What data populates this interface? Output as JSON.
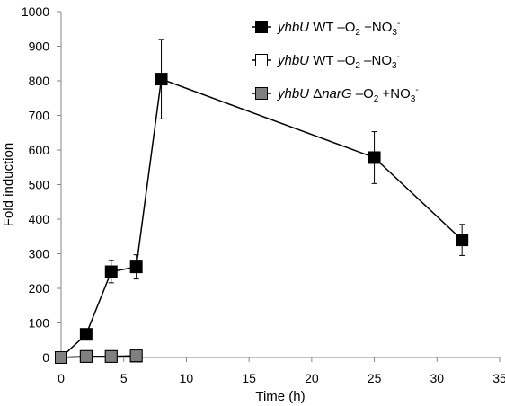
{
  "chart_data": {
    "type": "line",
    "xlabel": "Time (h)",
    "ylabel": "Fold induction",
    "xlim": [
      0,
      35
    ],
    "ylim": [
      0,
      1000
    ],
    "xticks": [
      0,
      5,
      10,
      15,
      20,
      25,
      30,
      35
    ],
    "yticks": [
      0,
      100,
      200,
      300,
      400,
      500,
      600,
      700,
      800,
      900,
      1000
    ],
    "grid": false,
    "legend_position": "top-right",
    "series": [
      {
        "gene": "yhbU",
        "label": "WT –O",
        "sub": "2",
        "label2": " +NO",
        "sub2": "3",
        "sup2": "-",
        "marker": "square",
        "fill": "#000000",
        "x": [
          0,
          2,
          4,
          6,
          8,
          25,
          32
        ],
        "y": [
          0,
          67,
          248,
          262,
          805,
          578,
          340
        ],
        "err": [
          0,
          5,
          32,
          35,
          115,
          75,
          45
        ]
      },
      {
        "gene": "yhbU",
        "label": "WT –O",
        "sub": "2",
        "label2": "  –NO",
        "sub2": "3",
        "sup2": "-",
        "marker": "square",
        "fill": "#ffffff",
        "x": [
          0,
          2,
          4,
          6
        ],
        "y": [
          0,
          3,
          3,
          4
        ],
        "err": [
          0,
          0,
          0,
          0
        ]
      },
      {
        "gene": "yhbU",
        "gene2": "ΔnarG",
        "label": " –O",
        "sub": "2",
        "label2": " +NO",
        "sub2": "3",
        "sup2": "-",
        "marker": "square",
        "fill": "#808080",
        "x": [
          0,
          2,
          4,
          6
        ],
        "y": [
          0,
          3,
          3,
          5
        ],
        "err": [
          0,
          0,
          0,
          0
        ]
      }
    ]
  }
}
